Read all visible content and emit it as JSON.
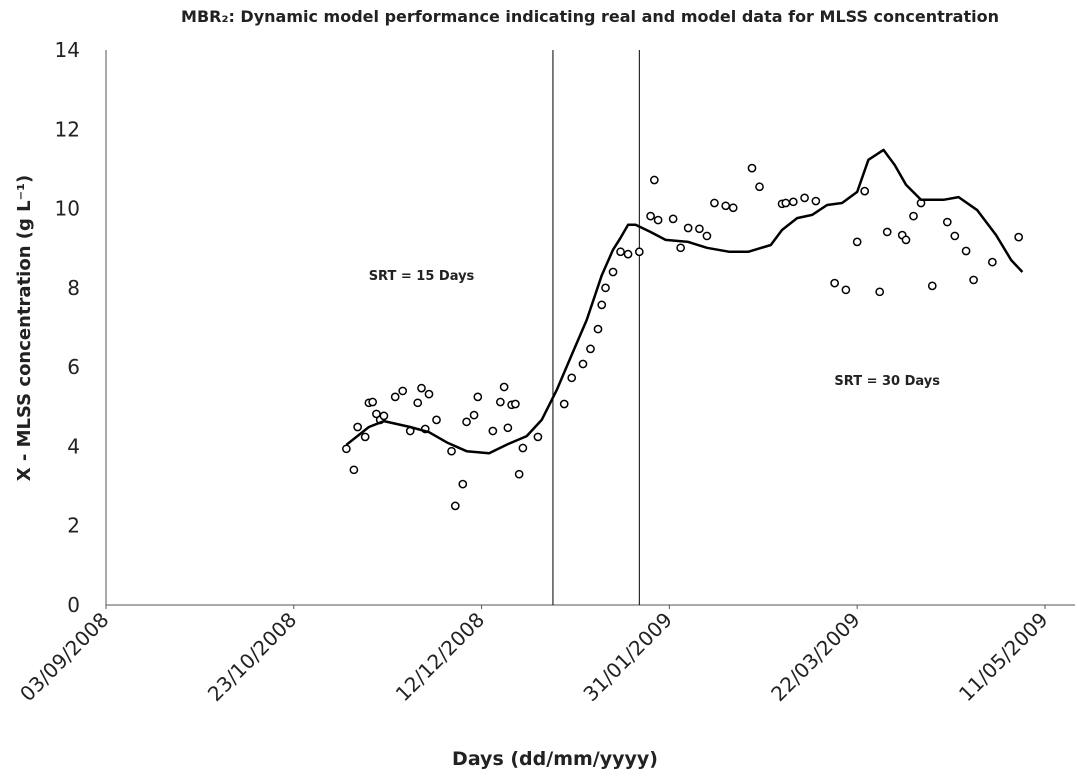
{
  "chart_data": {
    "type": "scatter",
    "title": "MBR₂: Dynamic model performance indicating real and model data for MLSS concentration",
    "x_label": "Days (dd/mm/yyyy)",
    "y_label": "X - MLSS concentration (g L⁻¹)",
    "xlim": [
      "03/09/2008",
      "19/05/2009"
    ],
    "xticks": [
      "03/09/2008",
      "23/10/2008",
      "12/12/2008",
      "31/01/2009",
      "22/03/2009",
      "11/05/2009"
    ],
    "ylim": [
      0,
      14
    ],
    "yticks": [
      0,
      2,
      4,
      6,
      8,
      10,
      12,
      14
    ],
    "grid": false,
    "vlines": [
      "31/12/2008",
      "23/01/2009"
    ],
    "annotations": [
      {
        "text": "SRT = 15 Days",
        "x": "26/11/2008",
        "y": 8.2
      },
      {
        "text": "SRT = 30 Days",
        "x": "30/03/2009",
        "y": 5.55
      }
    ],
    "series": [
      {
        "type": "scatter",
        "color": "#000000",
        "x": [
          "06/11/2008",
          "08/11/2008",
          "09/11/2008",
          "11/11/2008",
          "12/11/2008",
          "13/11/2008",
          "14/11/2008",
          "15/11/2008",
          "16/11/2008",
          "19/11/2008",
          "21/11/2008",
          "23/11/2008",
          "25/11/2008",
          "26/11/2008",
          "27/11/2008",
          "28/11/2008",
          "30/11/2008",
          "04/12/2008",
          "05/12/2008",
          "07/12/2008",
          "08/12/2008",
          "10/12/2008",
          "11/12/2008",
          "15/12/2008",
          "17/12/2008",
          "18/12/2008",
          "19/12/2008",
          "20/12/2008",
          "21/12/2008",
          "22/12/2008",
          "23/12/2008",
          "27/12/2008",
          "03/01/2009",
          "05/01/2009",
          "08/01/2009",
          "10/01/2009",
          "12/01/2009",
          "13/01/2009",
          "14/01/2009",
          "16/01/2009",
          "18/01/2009",
          "20/01/2009",
          "23/01/2009",
          "26/01/2009",
          "27/01/2009",
          "28/01/2009",
          "01/02/2009",
          "03/02/2009",
          "05/02/2009",
          "08/02/2009",
          "10/02/2009",
          "12/02/2009",
          "15/02/2009",
          "17/02/2009",
          "22/02/2009",
          "24/02/2009",
          "02/03/2009",
          "03/03/2009",
          "05/03/2009",
          "08/03/2009",
          "11/03/2009",
          "16/03/2009",
          "19/03/2009",
          "22/03/2009",
          "24/03/2009",
          "28/03/2009",
          "30/03/2009",
          "03/04/2009",
          "04/04/2009",
          "06/04/2009",
          "08/04/2009",
          "11/04/2009",
          "15/04/2009",
          "17/04/2009",
          "20/04/2009",
          "22/04/2009",
          "27/04/2009",
          "04/05/2009"
        ],
        "values": [
          3.94,
          3.41,
          4.49,
          4.24,
          5.1,
          5.12,
          4.82,
          4.67,
          4.77,
          5.25,
          5.4,
          4.39,
          5.1,
          5.47,
          4.44,
          5.32,
          4.67,
          3.88,
          2.5,
          3.05,
          4.62,
          4.79,
          5.25,
          4.39,
          5.12,
          5.5,
          4.47,
          5.05,
          5.07,
          3.3,
          3.96,
          4.24,
          5.07,
          5.73,
          6.08,
          6.46,
          6.96,
          7.57,
          8.0,
          8.4,
          8.91,
          8.85,
          8.91,
          9.81,
          10.72,
          9.71,
          9.74,
          9.01,
          9.51,
          9.49,
          9.31,
          10.14,
          10.07,
          10.02,
          11.02,
          10.55,
          10.12,
          10.14,
          10.17,
          10.27,
          10.19,
          8.12,
          7.95,
          9.16,
          10.44,
          7.9,
          9.41,
          9.33,
          9.21,
          9.81,
          10.14,
          8.05,
          9.66,
          9.31,
          8.93,
          8.2,
          8.65,
          9.28
        ]
      },
      {
        "type": "line",
        "color": "#000000",
        "x": [
          "06/11/2008",
          "12/11/2008",
          "16/11/2008",
          "23/11/2008",
          "28/11/2008",
          "03/12/2008",
          "08/12/2008",
          "14/12/2008",
          "19/12/2008",
          "24/12/2008",
          "28/12/2008",
          "01/01/2009",
          "05/01/2009",
          "09/01/2009",
          "13/01/2009",
          "16/01/2009",
          "18/01/2009",
          "20/01/2009",
          "22/01/2009",
          "26/01/2009",
          "30/01/2009",
          "05/02/2009",
          "10/02/2009",
          "16/02/2009",
          "21/02/2009",
          "27/02/2009",
          "02/03/2009",
          "06/03/2009",
          "10/03/2009",
          "14/03/2009",
          "18/03/2009",
          "22/03/2009",
          "25/03/2009",
          "29/03/2009",
          "01/04/2009",
          "04/04/2009",
          "08/04/2009",
          "14/04/2009",
          "18/04/2009",
          "23/04/2009",
          "28/04/2009",
          "02/05/2009",
          "05/05/2009"
        ],
        "values": [
          4.04,
          4.49,
          4.64,
          4.49,
          4.36,
          4.09,
          3.88,
          3.83,
          4.06,
          4.26,
          4.67,
          5.42,
          6.31,
          7.19,
          8.32,
          8.96,
          9.26,
          9.59,
          9.59,
          9.41,
          9.21,
          9.16,
          9.01,
          8.91,
          8.91,
          9.08,
          9.46,
          9.76,
          9.84,
          10.09,
          10.14,
          10.42,
          11.23,
          11.48,
          11.1,
          10.6,
          10.22,
          10.22,
          10.29,
          9.96,
          9.33,
          8.7,
          8.4
        ]
      }
    ]
  }
}
